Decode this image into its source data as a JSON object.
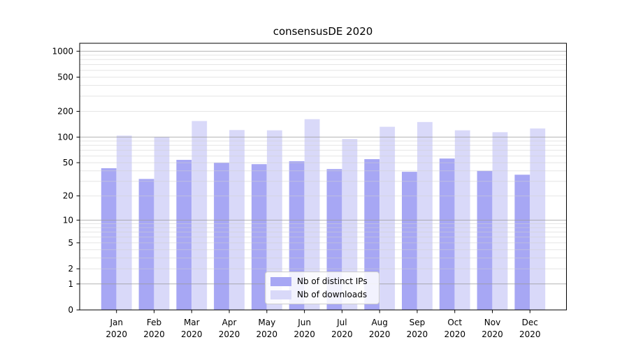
{
  "title": "consensusDE 2020",
  "chart_data": {
    "type": "bar",
    "title": "consensusDE 2020",
    "categories": [
      "Jan 2020",
      "Feb 2020",
      "Mar 2020",
      "Apr 2020",
      "May 2020",
      "Jun 2020",
      "Jul 2020",
      "Aug 2020",
      "Sep 2020",
      "Oct 2020",
      "Nov 2020",
      "Dec 2020"
    ],
    "series": [
      {
        "name": "Nb of distinct IPs",
        "color": "#a7a7f4",
        "values": [
          43,
          32,
          54,
          50,
          48,
          52,
          42,
          55,
          39,
          56,
          40,
          36
        ]
      },
      {
        "name": "Nb of downloads",
        "color": "#d9d9f9",
        "values": [
          104,
          100,
          154,
          121,
          120,
          162,
          95,
          132,
          150,
          120,
          114,
          126
        ]
      }
    ],
    "yscale": "log1p",
    "yticks": [
      0,
      1,
      2,
      5,
      10,
      20,
      50,
      100,
      200,
      500,
      1000
    ],
    "ylim": [
      0,
      1236
    ],
    "xlabel": "",
    "ylabel": "",
    "grid": true,
    "legend_position": "lower center inside"
  },
  "colors": {
    "background": "#ffffff",
    "bar_distinct_ips": "#a7a7f4",
    "bar_downloads": "#d9d9f9",
    "grid_major": "#9a9a9a",
    "grid_minor": "#cfcfcf",
    "axis": "#000000",
    "text": "#000000",
    "legend_border": "#cccccc"
  }
}
